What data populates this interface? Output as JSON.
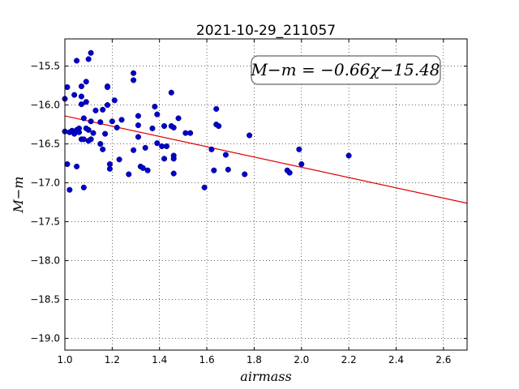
{
  "chart_data": {
    "type": "scatter",
    "title": "2021-10-29_211057",
    "xlabel": "airmass",
    "ylabel": "M−m",
    "xlim": [
      1.0,
      2.7
    ],
    "ylim": [
      -19.15,
      -15.15
    ],
    "y_inverted": true,
    "grid": true,
    "x_ticks": [
      1.0,
      1.2,
      1.4,
      1.6,
      1.8,
      2.0,
      2.2,
      2.4,
      2.6
    ],
    "x_tick_labels": [
      "1.0",
      "1.2",
      "1.4",
      "1.6",
      "1.8",
      "2.0",
      "2.2",
      "2.4",
      "2.6"
    ],
    "y_ticks": [
      -15.5,
      -16.0,
      -16.5,
      -17.0,
      -17.5,
      -18.0,
      -18.5,
      -19.0
    ],
    "y_tick_labels": [
      "−15.5",
      "−16.0",
      "−16.5",
      "−17.0",
      "−17.5",
      "−18.0",
      "−18.5",
      "−19.0"
    ],
    "annotation": "M−m = −0.66χ−15.48",
    "fit": {
      "slope": -0.66,
      "intercept": -15.48,
      "color": "#e00000"
    },
    "marker_color": "#0000cc",
    "points": [
      [
        1.0,
        -15.92
      ],
      [
        1.0,
        -16.34
      ],
      [
        1.01,
        -15.77
      ],
      [
        1.01,
        -16.76
      ],
      [
        1.02,
        -17.09
      ],
      [
        1.02,
        -16.35
      ],
      [
        1.03,
        -16.33
      ],
      [
        1.04,
        -15.87
      ],
      [
        1.04,
        -16.37
      ],
      [
        1.05,
        -16.32
      ],
      [
        1.05,
        -16.79
      ],
      [
        1.05,
        -15.43
      ],
      [
        1.06,
        -16.3
      ],
      [
        1.06,
        -16.35
      ],
      [
        1.07,
        -15.76
      ],
      [
        1.07,
        -15.99
      ],
      [
        1.07,
        -15.89
      ],
      [
        1.07,
        -16.44
      ],
      [
        1.08,
        -16.17
      ],
      [
        1.08,
        -16.44
      ],
      [
        1.08,
        -17.06
      ],
      [
        1.09,
        -15.7
      ],
      [
        1.09,
        -16.3
      ],
      [
        1.09,
        -15.96
      ],
      [
        1.1,
        -15.41
      ],
      [
        1.1,
        -16.32
      ],
      [
        1.1,
        -16.46
      ],
      [
        1.11,
        -15.33
      ],
      [
        1.11,
        -16.21
      ],
      [
        1.11,
        -16.44
      ],
      [
        1.12,
        -16.36
      ],
      [
        1.13,
        -16.07
      ],
      [
        1.15,
        -16.22
      ],
      [
        1.15,
        -16.5
      ],
      [
        1.16,
        -16.06
      ],
      [
        1.16,
        -16.57
      ],
      [
        1.17,
        -16.37
      ],
      [
        1.18,
        -15.76
      ],
      [
        1.18,
        -15.77
      ],
      [
        1.18,
        -16.0
      ],
      [
        1.19,
        -16.76
      ],
      [
        1.19,
        -16.82
      ],
      [
        1.2,
        -16.21
      ],
      [
        1.21,
        -15.94
      ],
      [
        1.22,
        -16.29
      ],
      [
        1.23,
        -16.7
      ],
      [
        1.24,
        -16.19
      ],
      [
        1.27,
        -16.89
      ],
      [
        1.29,
        -16.58
      ],
      [
        1.29,
        -15.59
      ],
      [
        1.29,
        -15.68
      ],
      [
        1.31,
        -16.14
      ],
      [
        1.31,
        -16.26
      ],
      [
        1.31,
        -16.41
      ],
      [
        1.32,
        -16.79
      ],
      [
        1.33,
        -16.81
      ],
      [
        1.34,
        -16.55
      ],
      [
        1.35,
        -16.84
      ],
      [
        1.37,
        -16.3
      ],
      [
        1.38,
        -16.02
      ],
      [
        1.39,
        -16.12
      ],
      [
        1.39,
        -16.49
      ],
      [
        1.41,
        -16.53
      ],
      [
        1.42,
        -16.27
      ],
      [
        1.42,
        -16.69
      ],
      [
        1.43,
        -16.53
      ],
      [
        1.45,
        -15.84
      ],
      [
        1.45,
        -16.27
      ],
      [
        1.46,
        -16.29
      ],
      [
        1.46,
        -16.65
      ],
      [
        1.46,
        -16.69
      ],
      [
        1.46,
        -16.88
      ],
      [
        1.48,
        -16.17
      ],
      [
        1.51,
        -16.36
      ],
      [
        1.53,
        -16.36
      ],
      [
        1.59,
        -17.06
      ],
      [
        1.62,
        -16.57
      ],
      [
        1.63,
        -16.84
      ],
      [
        1.64,
        -16.05
      ],
      [
        1.64,
        -16.25
      ],
      [
        1.65,
        -16.27
      ],
      [
        1.68,
        -16.64
      ],
      [
        1.69,
        -16.83
      ],
      [
        1.76,
        -16.89
      ],
      [
        1.78,
        -16.39
      ],
      [
        1.94,
        -16.84
      ],
      [
        1.95,
        -16.87
      ],
      [
        1.99,
        -16.57
      ],
      [
        2.0,
        -16.76
      ],
      [
        2.2,
        -16.65
      ]
    ]
  }
}
